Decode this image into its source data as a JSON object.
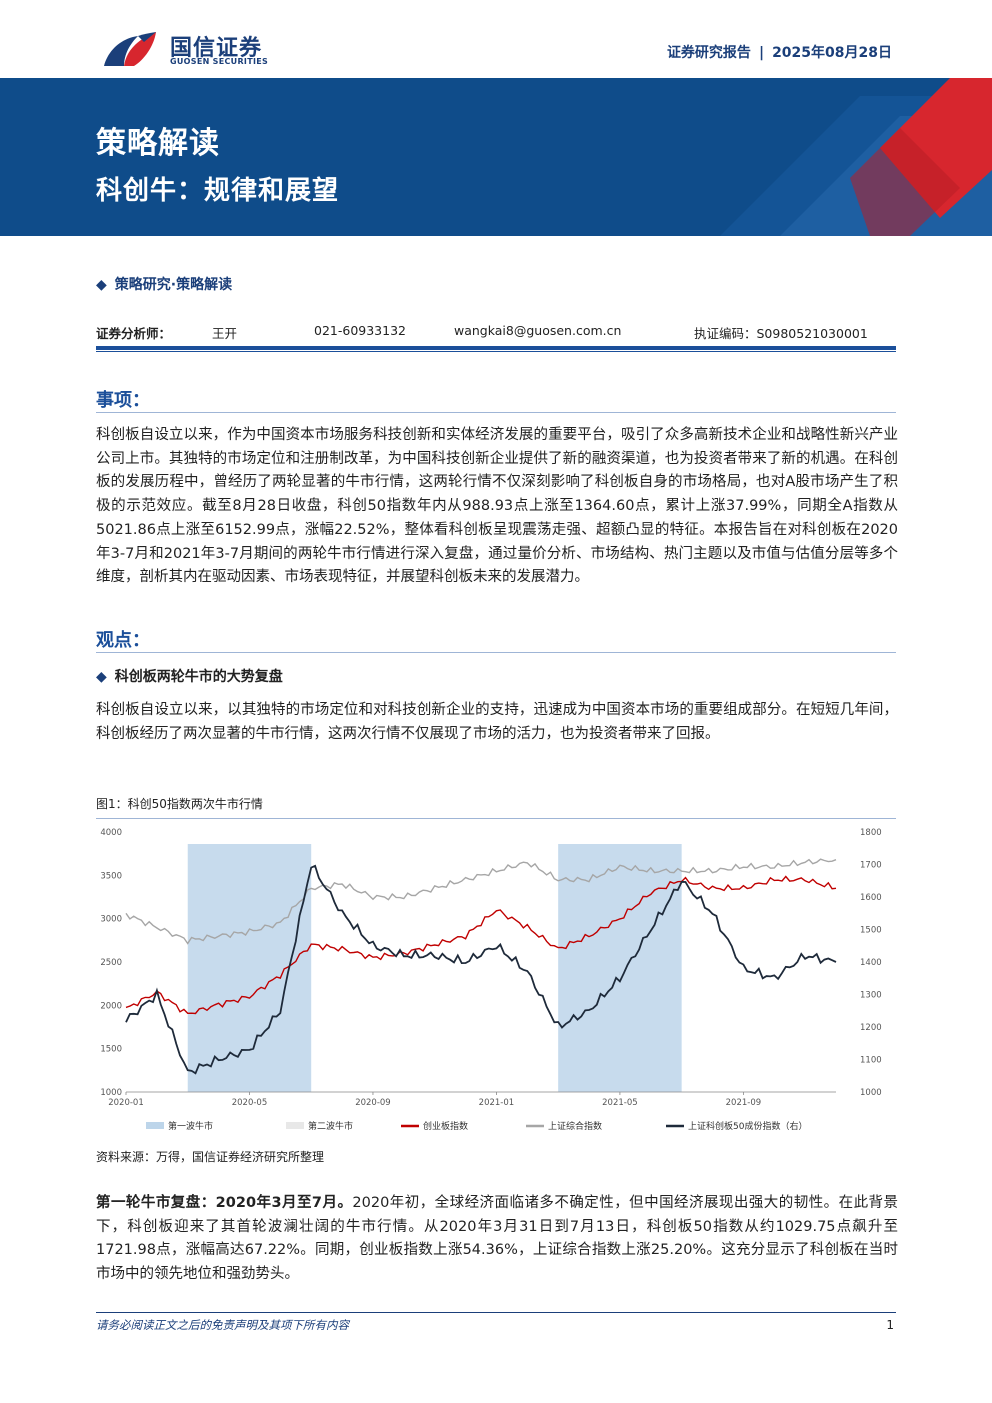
{
  "header": {
    "logo_cn": "国信证券",
    "logo_en": "GUOSEN SECURITIES",
    "report_type": "证券研究报告",
    "separator": "|",
    "date": "2025年08月28日"
  },
  "banner": {
    "title": "策略解读",
    "subtitle": "科创牛：规律和展望"
  },
  "category": "策略研究·策略解读",
  "analyst": {
    "label": "证券分析师：",
    "name": "王开",
    "phone": "021-60933132",
    "email": "wangkai8@guosen.com.cn",
    "license": "执证编码：S0980521030001"
  },
  "sections": {
    "matter_title": "事项：",
    "matter_text": "科创板自设立以来，作为中国资本市场服务科技创新和实体经济发展的重要平台，吸引了众多高新技术企业和战略性新兴产业公司上市。其独特的市场定位和注册制改革，为中国科技创新企业提供了新的融资渠道，也为投资者带来了新的机遇。在科创板的发展历程中，曾经历了两轮显著的牛市行情，这两轮行情不仅深刻影响了科创板自身的市场格局，也对A股市场产生了积极的示范效应。截至8月28日收盘，科创50指数年内从988.93点上涨至1364.60点，累计上涨37.99%，同期全A指数从5021.86点上涨至6152.99点，涨幅22.52%，整体看科创板呈现震荡走强、超额凸显的特征。本报告旨在对科创板在2020年3-7月和2021年3-7月期间的两轮牛市行情进行深入复盘，通过量价分析、市场结构、热门主题以及市值与估值分层等多个维度，剖析其内在驱动因素、市场表现特征，并展望科创板未来的发展潜力。",
    "view_title": "观点：",
    "sub_heading": "科创板两轮牛市的大势复盘",
    "view_text": "科创板自设立以来，以其独特的市场定位和对科技创新企业的支持，迅速成为中国资本市场的重要组成部分。在短短几年间，科创板经历了两次显著的牛市行情，这两次行情不仅展现了市场的活力，也为投资者带来了回报。",
    "figure_title": "图1：科创50指数两次牛市行情",
    "source": "资料来源：万得，国信证券经济研究所整理",
    "first_bold": "第一轮牛市复盘：2020年3月至7月。",
    "first_text": "2020年初，全球经济面临诸多不确定性，但中国经济展现出强大的韧性。在此背景下，科创板迎来了其首轮波澜壮阔的牛市行情。从2020年3月31日到7月13日，科创板50指数从约1029.75点飙升至1721.98点，涨幅高达67.22%。同期，创业板指数上涨54.36%，上证综合指数上涨25.20%。这充分显示了科创板在当时市场中的领先地位和强劲势头。"
  },
  "footer": {
    "disclaimer": "请务必阅读正文之后的免责声明及其项下所有内容",
    "page": "1"
  },
  "colors": {
    "navy": "#1b3f7a",
    "banner": "#0f4c8a",
    "accent_red": "#d7262e",
    "chinext": "#c00000",
    "sse": "#a6a6a6",
    "star50": "#1e2a3a",
    "bull_shade": "#bdd5ea"
  },
  "chart_data": {
    "type": "line",
    "title": "图1：科创50指数两次牛市行情",
    "x_ticks": [
      "2020-01",
      "2020-05",
      "2020-09",
      "2021-01",
      "2021-05",
      "2021-09"
    ],
    "y_left": {
      "ticks": [
        1000,
        1500,
        2000,
        2500,
        3000,
        3500,
        4000
      ],
      "range": [
        1000,
        4000
      ]
    },
    "y_right": {
      "ticks": [
        1000,
        1100,
        1200,
        1300,
        1400,
        1500,
        1600,
        1700,
        1800
      ],
      "range": [
        1000,
        1800
      ]
    },
    "shaded_periods": [
      {
        "name": "第一波牛市",
        "start": "2020-03",
        "end": "2020-07"
      },
      {
        "name": "第二波牛市",
        "start": "2021-03",
        "end": "2021-07"
      }
    ],
    "x": [
      "2020-01",
      "2020-02",
      "2020-03",
      "2020-04",
      "2020-05",
      "2020-06",
      "2020-07",
      "2020-08",
      "2020-09",
      "2020-10",
      "2020-11",
      "2020-12",
      "2021-01",
      "2021-02",
      "2021-03",
      "2021-04",
      "2021-05",
      "2021-06",
      "2021-07",
      "2021-08",
      "2021-09",
      "2021-10",
      "2021-11",
      "2021-12"
    ],
    "series": [
      {
        "name": "创业板指数",
        "axis": "left",
        "color": "#c00000",
        "values": [
          1960,
          2150,
          1900,
          2010,
          2100,
          2350,
          2700,
          2650,
          2550,
          2600,
          2700,
          2800,
          3100,
          2900,
          2650,
          2800,
          3000,
          3300,
          3450,
          3350,
          3350,
          3450,
          3450,
          3350
        ]
      },
      {
        "name": "上证综合指数",
        "axis": "left",
        "color": "#a6a6a6",
        "values": [
          3050,
          2900,
          2750,
          2800,
          2850,
          2950,
          3350,
          3400,
          3250,
          3250,
          3350,
          3450,
          3550,
          3650,
          3450,
          3450,
          3600,
          3550,
          3550,
          3550,
          3600,
          3600,
          3650,
          3680
        ]
      },
      {
        "name": "上证科创板50成份指数（右）",
        "axis": "right",
        "color": "#1e2a3a",
        "values": [
          1220,
          1300,
          1060,
          1100,
          1130,
          1250,
          1700,
          1550,
          1450,
          1420,
          1420,
          1400,
          1450,
          1370,
          1200,
          1250,
          1350,
          1500,
          1650,
          1550,
          1380,
          1350,
          1420,
          1400
        ]
      }
    ],
    "legend": [
      "第一波牛市",
      "第二波牛市",
      "创业板指数",
      "上证综合指数",
      "上证科创板50成份指数（右）"
    ],
    "legend_position": "bottom"
  }
}
